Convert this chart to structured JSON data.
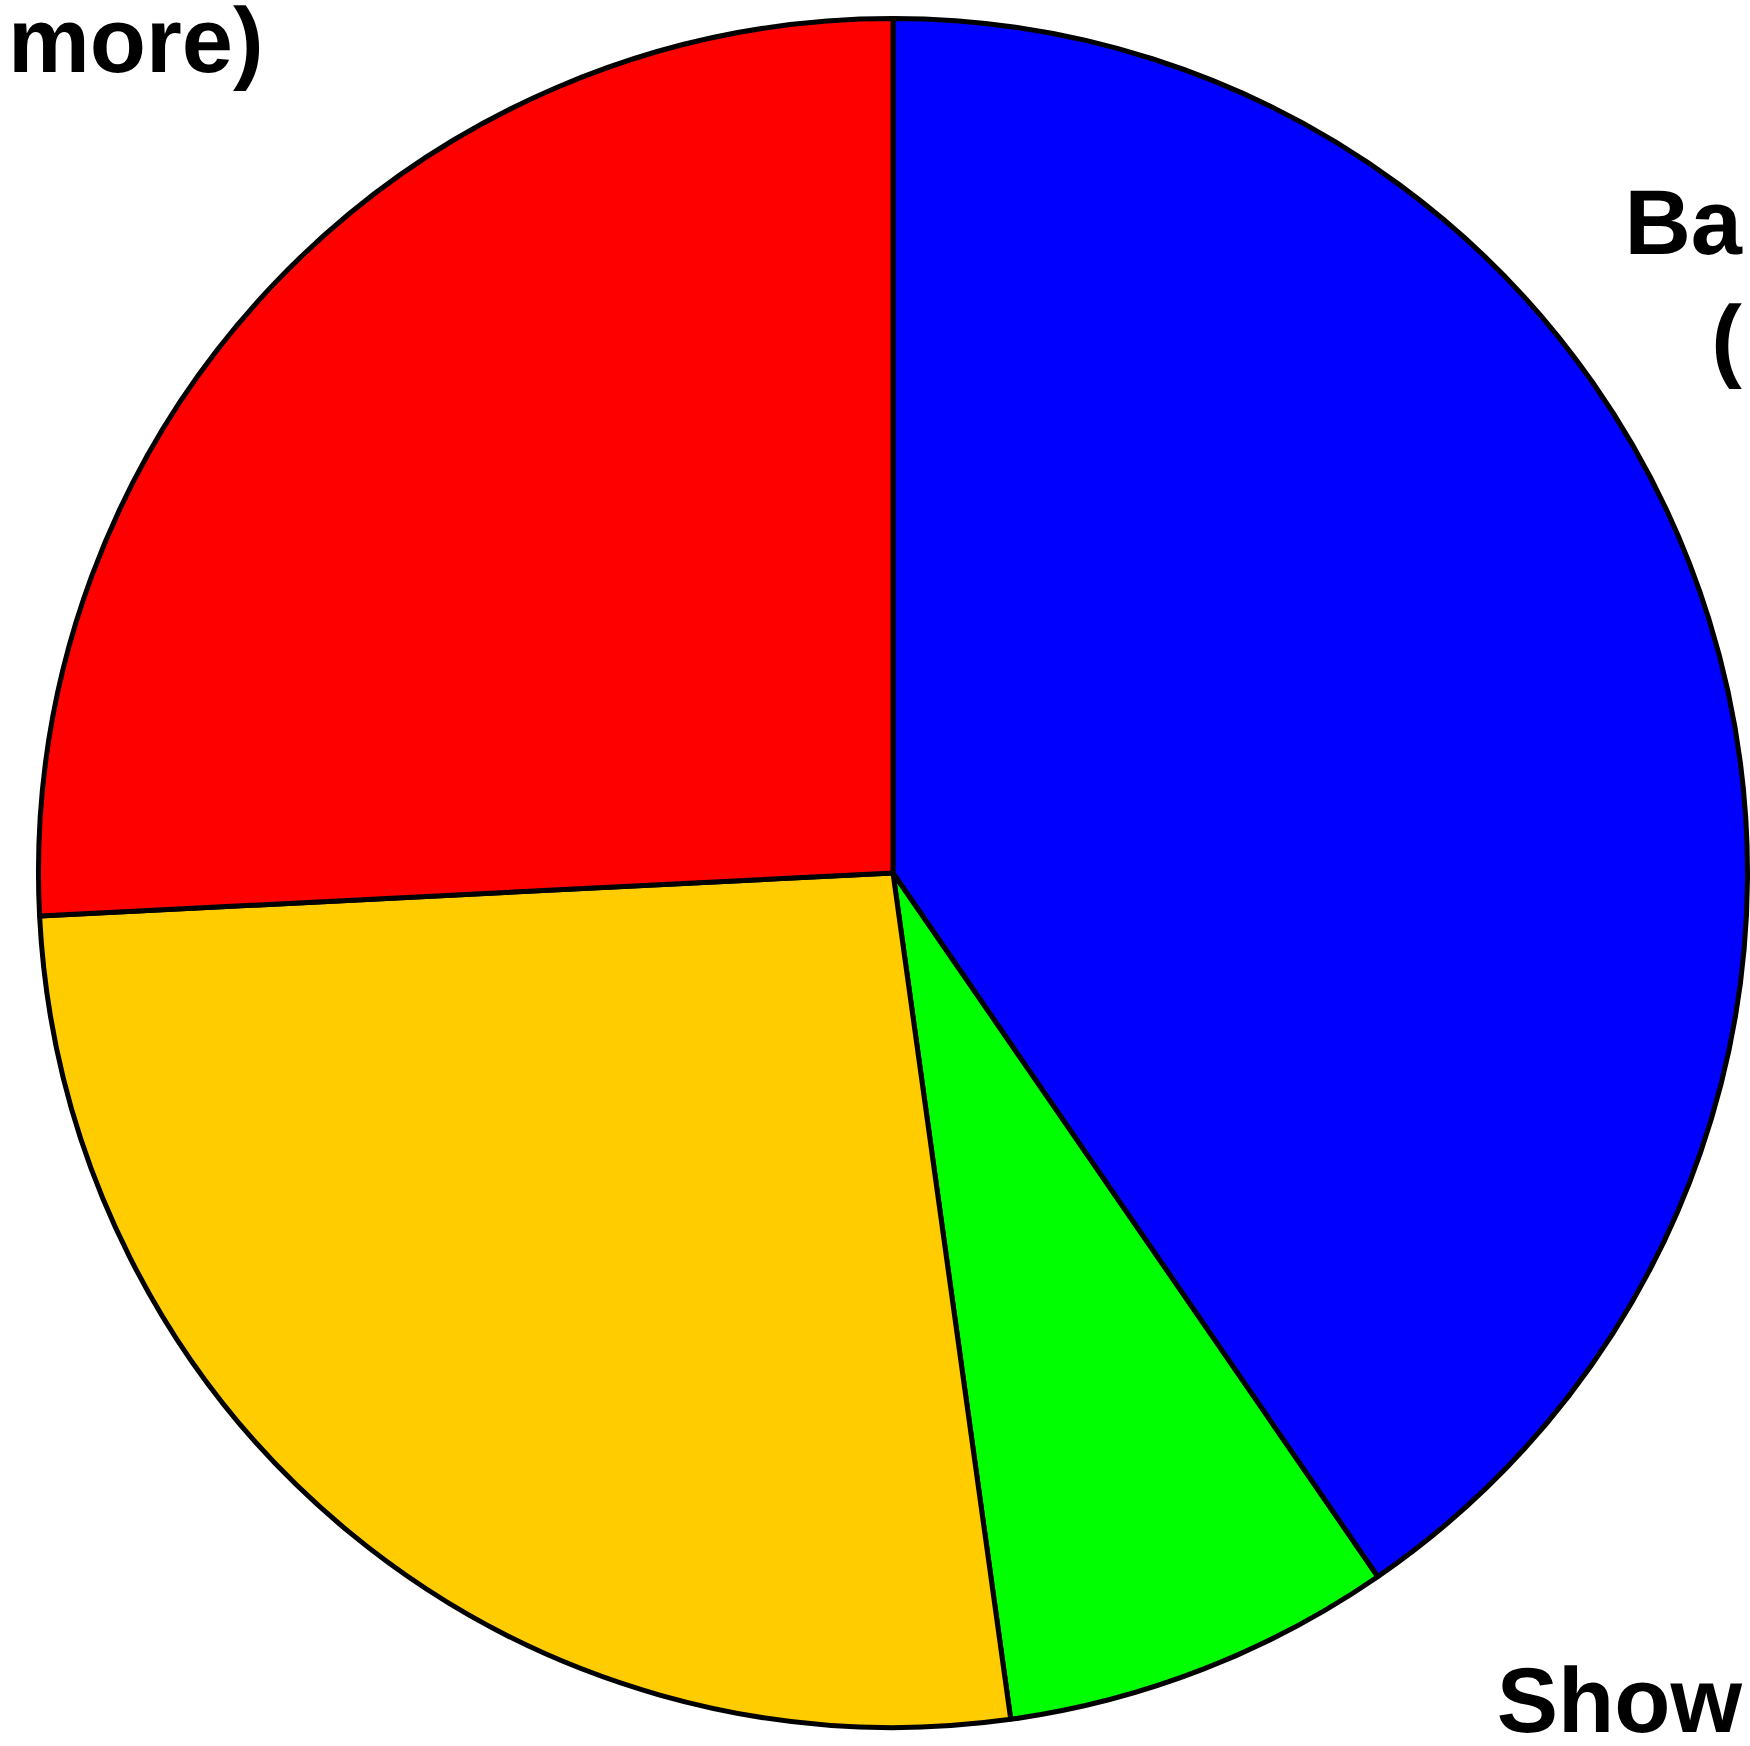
{
  "chart_data": {
    "type": "pie",
    "categories": [
      "Ba\n(",
      "Show",
      null,
      "more)"
    ],
    "values": [
      40.4,
      7.4,
      26.4,
      25.8
    ],
    "colors": [
      "#0000ff",
      "#00ff00",
      "#ffcc00",
      "#ff0000"
    ]
  }
}
